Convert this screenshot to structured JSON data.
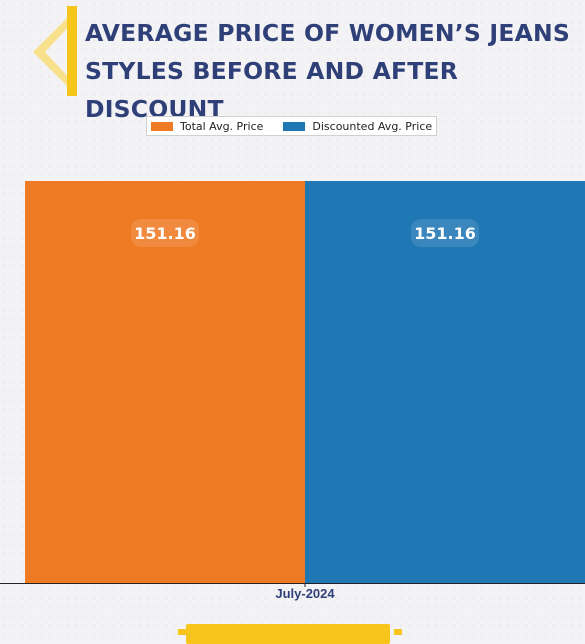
{
  "header": {
    "title_line1": "AVERAGE PRICE OF WOMEN’S JEANS",
    "title_line2": "STYLES BEFORE AND AFTER DISCOUNT"
  },
  "colors": {
    "title": "#2f3f78",
    "accent": "#f7c51c",
    "series_total": "#ef7a24",
    "series_discounted": "#1f77b4"
  },
  "chart_data": {
    "type": "bar",
    "title": "AVERAGE PRICE OF WOMEN’S JEANS STYLES BEFORE AND AFTER DISCOUNT",
    "categories": [
      "July-2024"
    ],
    "series": [
      {
        "name": "Total Avg. Price",
        "values": [
          151.16
        ],
        "color": "#ef7a24"
      },
      {
        "name": "Discounted Avg. Price",
        "values": [
          151.16
        ],
        "color": "#1f77b4"
      }
    ],
    "ylim": [
      0,
      151.16
    ],
    "grid": false,
    "legend": "top-center",
    "data_labels": [
      "151.16",
      "151.16"
    ]
  }
}
